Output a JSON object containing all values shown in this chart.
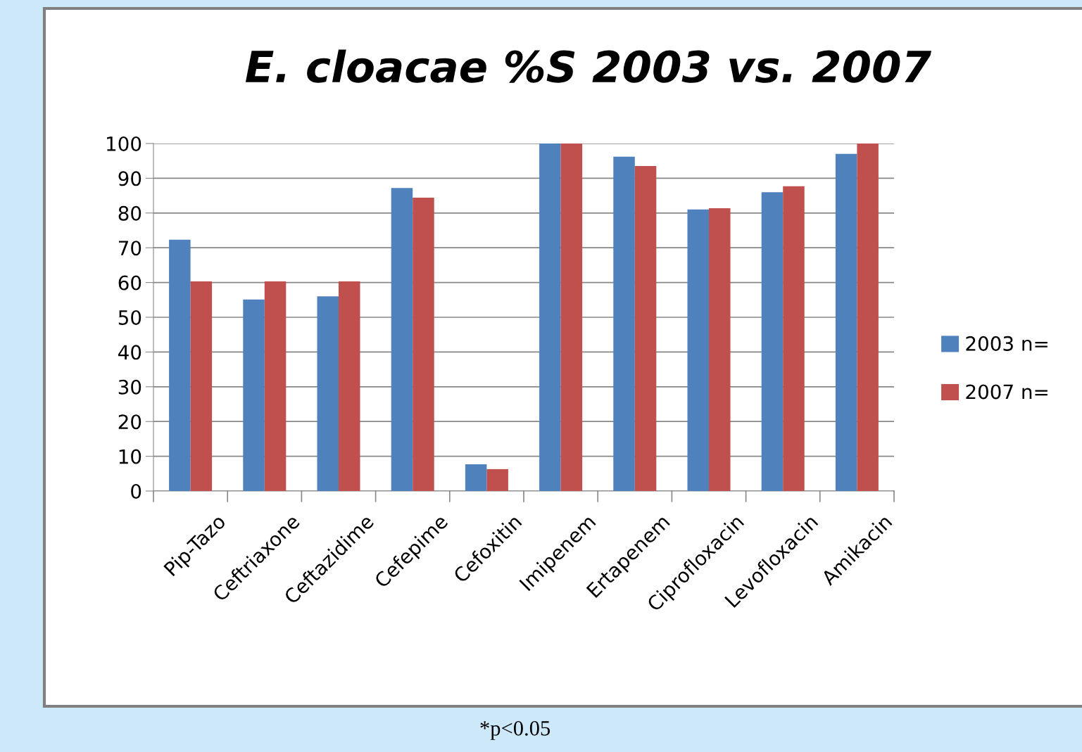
{
  "chart_data": {
    "type": "bar",
    "title": "E. cloacae %S 2003 vs. 2007",
    "categories": [
      "Pip-Tazo",
      "Ceftriaxone",
      "Ceftazidime",
      "Cefepime",
      "Cefoxitin",
      "Imipenem",
      "Ertapenem",
      "Ciprofloxacin",
      "Levofloxacin",
      "Amikacin"
    ],
    "series": [
      {
        "name": "2003 n=",
        "color": "#4f81bd",
        "values": [
          72.3,
          55.1,
          56,
          87.2,
          7.7,
          100,
          96.2,
          81,
          86,
          97
        ]
      },
      {
        "name": "2007 n=",
        "color": "#c0504d",
        "values": [
          60.3,
          60.3,
          60.3,
          84.4,
          6.3,
          100,
          93.5,
          81.4,
          87.7,
          100
        ]
      }
    ],
    "ylim": [
      0,
      100
    ],
    "yticks": [
      0,
      10,
      20,
      30,
      40,
      50,
      60,
      70,
      80,
      90,
      100
    ],
    "grid": "y",
    "legend": "right",
    "annotations": [
      "*p<0.05"
    ]
  }
}
